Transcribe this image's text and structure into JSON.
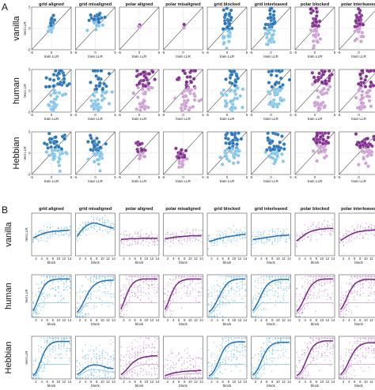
{
  "colors": {
    "grid_dark": "#1f6fb5",
    "grid_light": "#7fc2e6",
    "polar_dark": "#7a2388",
    "polar_light": "#c99bd0",
    "identity_line": "#555555",
    "dashed_line": "#9a9a9a"
  },
  "panel_letters": [
    "A",
    "B"
  ],
  "col_titles": [
    "grid aligned",
    "grid misaligned",
    "polar aligned",
    "polar misaligned",
    "grid blocked",
    "grid interleaved",
    "polar blocked",
    "polar interleaved"
  ],
  "row_labels": [
    "vanilla",
    "human",
    "Hebbian"
  ],
  "chart_data": [
    {
      "type": "scatter",
      "panel": "A",
      "xlabel": "train LLR",
      "ylabel": "test LLR",
      "xlim": [
        -5,
        5
      ],
      "ylim": [
        -5,
        5
      ],
      "xticks": [
        "-5",
        "0",
        "5"
      ],
      "yticks": [
        "5",
        "0",
        "-5"
      ],
      "identity_line": true,
      "cells": [
        {
          "row": "vanilla",
          "col": "grid aligned",
          "family": "grid",
          "center": [
            0.0,
            0.9
          ],
          "spread": [
            0.35,
            1.2
          ],
          "points": 22
        },
        {
          "row": "vanilla",
          "col": "grid misaligned",
          "family": "grid",
          "center": [
            0.2,
            1.6
          ],
          "spread": [
            0.9,
            0.8
          ],
          "points": 28
        },
        {
          "row": "vanilla",
          "col": "polar aligned",
          "family": "polar",
          "center": [
            0.0,
            0.6
          ],
          "spread": [
            0.2,
            0.3
          ],
          "points": 4
        },
        {
          "row": "vanilla",
          "col": "polar misaligned",
          "family": "polar",
          "center": [
            0.0,
            0.5
          ],
          "spread": [
            0.2,
            0.3
          ],
          "points": 3
        },
        {
          "row": "vanilla",
          "col": "grid blocked",
          "family": "grid",
          "center": [
            0.0,
            0.2
          ],
          "spread": [
            0.6,
            2.6
          ],
          "points": 45
        },
        {
          "row": "vanilla",
          "col": "grid interleaved",
          "family": "grid",
          "center": [
            0.0,
            0.3
          ],
          "spread": [
            0.6,
            2.4
          ],
          "points": 45
        },
        {
          "row": "vanilla",
          "col": "polar blocked",
          "family": "polar",
          "center": [
            0.0,
            0.5
          ],
          "spread": [
            0.6,
            2.2
          ],
          "points": 38
        },
        {
          "row": "vanilla",
          "col": "polar interleaved",
          "family": "polar",
          "center": [
            0.0,
            0.5
          ],
          "spread": [
            0.6,
            2.2
          ],
          "points": 38
        },
        {
          "row": "human",
          "col": "grid aligned",
          "family": "grid",
          "center": [
            1.2,
            1.3
          ],
          "spread": [
            1.4,
            2.6
          ],
          "points": 55,
          "low_cluster": true
        },
        {
          "row": "human",
          "col": "grid misaligned",
          "family": "grid",
          "center": [
            1.0,
            0.8
          ],
          "spread": [
            1.4,
            2.6
          ],
          "points": 55,
          "low_cluster": true
        },
        {
          "row": "human",
          "col": "polar aligned",
          "family": "polar",
          "center": [
            1.4,
            1.5
          ],
          "spread": [
            1.3,
            2.4
          ],
          "points": 55,
          "low_cluster": true
        },
        {
          "row": "human",
          "col": "polar misaligned",
          "family": "polar",
          "center": [
            1.2,
            1.2
          ],
          "spread": [
            1.4,
            2.5
          ],
          "points": 55,
          "low_cluster": true
        },
        {
          "row": "human",
          "col": "grid blocked",
          "family": "grid",
          "center": [
            1.6,
            1.6
          ],
          "spread": [
            1.3,
            2.4
          ],
          "points": 55,
          "low_cluster": true
        },
        {
          "row": "human",
          "col": "grid interleaved",
          "family": "grid",
          "center": [
            1.4,
            1.2
          ],
          "spread": [
            1.3,
            2.5
          ],
          "points": 55,
          "low_cluster": true
        },
        {
          "row": "human",
          "col": "polar blocked",
          "family": "polar",
          "center": [
            1.8,
            2.0
          ],
          "spread": [
            1.2,
            2.2
          ],
          "points": 55,
          "low_cluster": true
        },
        {
          "row": "human",
          "col": "polar interleaved",
          "family": "polar",
          "center": [
            1.4,
            1.4
          ],
          "spread": [
            1.3,
            2.5
          ],
          "points": 55,
          "low_cluster": true
        },
        {
          "row": "Hebbian",
          "col": "grid aligned",
          "family": "grid",
          "center": [
            1.0,
            1.4
          ],
          "spread": [
            1.3,
            2.2
          ],
          "points": 50,
          "low_cluster": false
        },
        {
          "row": "Hebbian",
          "col": "grid misaligned",
          "family": "grid",
          "center": [
            0.4,
            0.8
          ],
          "spread": [
            1.0,
            1.8
          ],
          "points": 45,
          "low_cluster": false
        },
        {
          "row": "Hebbian",
          "col": "polar aligned",
          "family": "polar",
          "center": [
            0.1,
            0.3
          ],
          "spread": [
            0.6,
            1.0
          ],
          "points": 25,
          "low_cluster": false
        },
        {
          "row": "Hebbian",
          "col": "polar misaligned",
          "family": "polar",
          "center": [
            -0.4,
            -1.0
          ],
          "spread": [
            0.7,
            1.2
          ],
          "points": 25,
          "low_cluster": false
        },
        {
          "row": "Hebbian",
          "col": "grid blocked",
          "family": "grid",
          "center": [
            1.4,
            1.4
          ],
          "spread": [
            1.2,
            2.0
          ],
          "points": 50,
          "low_cluster": false
        },
        {
          "row": "Hebbian",
          "col": "grid interleaved",
          "family": "grid",
          "center": [
            1.0,
            1.0
          ],
          "spread": [
            1.2,
            2.0
          ],
          "points": 50,
          "low_cluster": false
        },
        {
          "row": "Hebbian",
          "col": "polar blocked",
          "family": "polar",
          "center": [
            1.8,
            2.2
          ],
          "spread": [
            1.0,
            1.6
          ],
          "points": 50,
          "low_cluster": false
        },
        {
          "row": "Hebbian",
          "col": "polar interleaved",
          "family": "polar",
          "center": [
            1.5,
            1.6
          ],
          "spread": [
            1.1,
            1.9
          ],
          "points": 50,
          "low_cluster": false
        }
      ]
    },
    {
      "type": "line",
      "panel": "B",
      "xlabel": "block",
      "ylabel": "test LLR",
      "x": [
        1,
        2,
        3,
        4,
        5,
        6,
        7,
        8,
        9,
        10,
        11,
        12,
        13,
        14
      ],
      "xticks": [
        "2",
        "4",
        "6",
        "8",
        "10",
        "12",
        "14"
      ],
      "ylim": [
        -5,
        5
      ],
      "curves": [
        {
          "row": "vanilla",
          "col": "grid aligned",
          "family": "grid",
          "values": [
            -0.8,
            -0.5,
            -0.2,
            0.1,
            0.3,
            0.5,
            0.6,
            0.7,
            0.8,
            0.8,
            0.9,
            0.9,
            1.0,
            1.0
          ]
        },
        {
          "row": "vanilla",
          "col": "grid misaligned",
          "family": "grid",
          "values": [
            -0.5,
            0.5,
            1.3,
            1.9,
            2.3,
            2.6,
            2.7,
            2.6,
            2.4,
            2.2,
            2.0,
            1.8,
            1.6,
            1.5
          ]
        },
        {
          "row": "vanilla",
          "col": "polar aligned",
          "family": "polar",
          "values": [
            -1.2,
            -1.1,
            -1.1,
            -1.0,
            -1.0,
            -1.0,
            -1.0,
            -0.9,
            -0.9,
            -0.9,
            -0.9,
            -0.9,
            -0.9,
            -0.9
          ]
        },
        {
          "row": "vanilla",
          "col": "polar misaligned",
          "family": "polar",
          "values": [
            -1.0,
            -0.9,
            -0.8,
            -0.7,
            -0.6,
            -0.5,
            -0.5,
            -0.4,
            -0.4,
            -0.3,
            -0.3,
            -0.3,
            -0.3,
            -0.3
          ]
        },
        {
          "row": "vanilla",
          "col": "grid blocked",
          "family": "grid",
          "values": [
            -1.6,
            -1.5,
            -1.3,
            -1.1,
            -0.9,
            -0.8,
            -0.6,
            -0.5,
            -0.4,
            -0.3,
            -0.2,
            -0.1,
            0.0,
            0.0
          ]
        },
        {
          "row": "vanilla",
          "col": "grid interleaved",
          "family": "grid",
          "values": [
            -1.2,
            -1.1,
            -1.0,
            -0.9,
            -0.8,
            -0.7,
            -0.6,
            -0.5,
            -0.4,
            -0.3,
            -0.3,
            -0.2,
            -0.2,
            -0.1
          ]
        },
        {
          "row": "vanilla",
          "col": "polar blocked",
          "family": "polar",
          "values": [
            -1.5,
            -1.0,
            -0.5,
            0.0,
            0.4,
            0.7,
            0.9,
            1.1,
            1.2,
            1.3,
            1.3,
            1.4,
            1.4,
            1.4
          ]
        },
        {
          "row": "vanilla",
          "col": "polar interleaved",
          "family": "polar",
          "values": [
            -1.4,
            -1.0,
            -0.6,
            -0.2,
            0.1,
            0.4,
            0.6,
            0.7,
            0.8,
            0.9,
            1.0,
            1.0,
            1.1,
            1.1
          ]
        },
        {
          "row": "human",
          "col": "grid aligned",
          "family": "grid",
          "values": [
            -3.5,
            -2.0,
            -0.3,
            1.3,
            2.5,
            3.2,
            3.6,
            3.8,
            3.9,
            4.0,
            4.0,
            4.0,
            4.0,
            4.0
          ]
        },
        {
          "row": "human",
          "col": "grid misaligned",
          "family": "grid",
          "values": [
            -3.8,
            -3.0,
            -1.8,
            -0.5,
            0.8,
            1.8,
            2.5,
            3.0,
            3.3,
            3.5,
            3.6,
            3.7,
            3.7,
            3.7
          ]
        },
        {
          "row": "human",
          "col": "polar aligned",
          "family": "polar",
          "values": [
            -3.0,
            -1.5,
            0.3,
            1.8,
            2.8,
            3.4,
            3.7,
            3.9,
            4.0,
            4.0,
            4.0,
            4.0,
            4.0,
            4.0
          ]
        },
        {
          "row": "human",
          "col": "polar misaligned",
          "family": "polar",
          "values": [
            -3.2,
            -1.8,
            0.0,
            1.5,
            2.6,
            3.2,
            3.6,
            3.8,
            3.9,
            4.0,
            4.0,
            4.0,
            4.0,
            4.0
          ]
        },
        {
          "row": "human",
          "col": "grid blocked",
          "family": "grid",
          "values": [
            -3.8,
            -3.2,
            -2.2,
            -1.0,
            0.3,
            1.5,
            2.5,
            3.2,
            3.6,
            3.8,
            3.9,
            4.0,
            4.0,
            4.0
          ]
        },
        {
          "row": "human",
          "col": "grid interleaved",
          "family": "grid",
          "values": [
            -3.5,
            -2.5,
            -1.2,
            0.2,
            1.5,
            2.5,
            3.1,
            3.5,
            3.7,
            3.8,
            3.9,
            3.9,
            3.9,
            3.9
          ]
        },
        {
          "row": "human",
          "col": "polar blocked",
          "family": "polar",
          "values": [
            -3.6,
            -2.8,
            -1.6,
            -0.2,
            1.2,
            2.3,
            3.0,
            3.5,
            3.8,
            3.9,
            4.0,
            4.0,
            4.0,
            4.0
          ]
        },
        {
          "row": "human",
          "col": "polar interleaved",
          "family": "polar",
          "values": [
            -3.2,
            -2.2,
            -0.8,
            0.7,
            1.9,
            2.8,
            3.3,
            3.6,
            3.8,
            3.9,
            3.9,
            3.9,
            3.9,
            3.9
          ]
        },
        {
          "row": "Hebbian",
          "col": "grid aligned",
          "family": "grid",
          "values": [
            -4.2,
            -3.5,
            -2.0,
            -0.2,
            1.4,
            2.5,
            3.1,
            3.5,
            3.7,
            3.8,
            3.8,
            3.8,
            3.8,
            3.8
          ]
        },
        {
          "row": "Hebbian",
          "col": "grid misaligned",
          "family": "grid",
          "values": [
            -4.0,
            -3.6,
            -3.0,
            -2.4,
            -2.0,
            -1.8,
            -1.7,
            -1.7,
            -1.8,
            -2.0,
            -2.2,
            -2.4,
            -2.5,
            -2.6
          ]
        },
        {
          "row": "Hebbian",
          "col": "polar aligned",
          "family": "polar",
          "values": [
            -4.0,
            -3.5,
            -2.8,
            -2.0,
            -1.3,
            -0.8,
            -0.4,
            -0.1,
            0.1,
            0.2,
            0.3,
            0.4,
            0.4,
            0.4
          ]
        },
        {
          "row": "Hebbian",
          "col": "polar misaligned",
          "family": "polar",
          "values": [
            -4.2,
            -4.0,
            -3.8,
            -3.6,
            -3.5,
            -3.4,
            -3.3,
            -3.2,
            -3.2,
            -3.1,
            -3.1,
            -3.1,
            -3.0,
            -3.0
          ]
        },
        {
          "row": "Hebbian",
          "col": "grid blocked",
          "family": "grid",
          "values": [
            -4.3,
            -3.9,
            -3.0,
            -1.6,
            0.0,
            1.5,
            2.5,
            3.1,
            3.4,
            3.6,
            3.7,
            3.7,
            3.7,
            3.7
          ]
        },
        {
          "row": "Hebbian",
          "col": "grid interleaved",
          "family": "grid",
          "values": [
            -4.1,
            -3.5,
            -2.4,
            -0.9,
            0.6,
            1.8,
            2.6,
            3.1,
            3.4,
            3.5,
            3.6,
            3.6,
            3.6,
            3.6
          ]
        },
        {
          "row": "Hebbian",
          "col": "polar blocked",
          "family": "polar",
          "values": [
            -4.2,
            -3.8,
            -2.8,
            -1.3,
            0.3,
            1.7,
            2.7,
            3.3,
            3.6,
            3.8,
            3.9,
            3.9,
            3.9,
            3.9
          ]
        },
        {
          "row": "Hebbian",
          "col": "polar interleaved",
          "family": "polar",
          "values": [
            -4.0,
            -3.3,
            -2.2,
            -0.8,
            0.5,
            1.6,
            2.4,
            2.9,
            3.2,
            3.4,
            3.5,
            3.5,
            3.5,
            3.5
          ]
        }
      ]
    }
  ]
}
